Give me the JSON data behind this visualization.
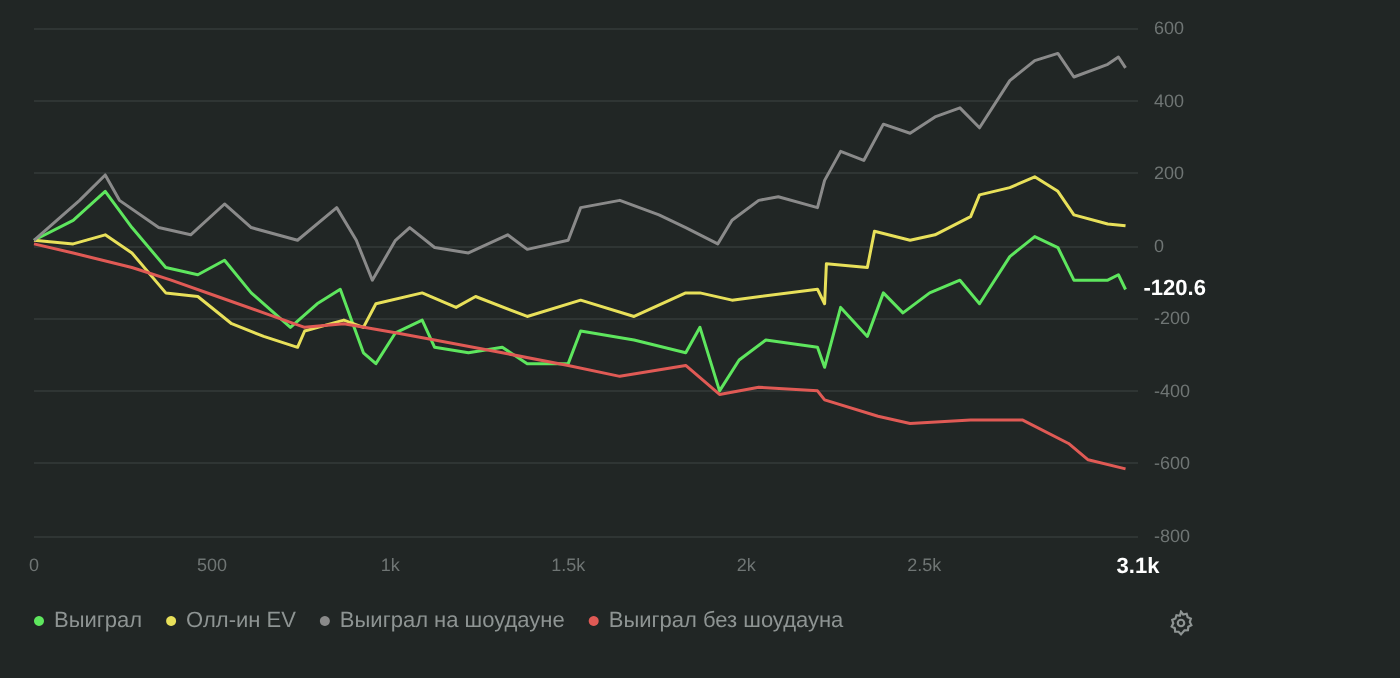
{
  "chart_data": {
    "type": "line",
    "xlim": [
      0,
      3100
    ],
    "xticks": [
      0,
      500,
      {
        "value": 1000,
        "label": "1k"
      },
      {
        "value": 1500,
        "label": "1.5k"
      },
      {
        "value": 2000,
        "label": "2k"
      },
      {
        "value": 2500,
        "label": "2.5k"
      },
      {
        "value": 3100,
        "label": "3.1k"
      }
    ],
    "ylim": [
      -800,
      600
    ],
    "yticks": [
      -800,
      -600,
      -400,
      -200,
      0,
      200,
      400,
      600
    ],
    "grid": "y",
    "legend": "bottom left",
    "marker": "none",
    "line_style": "solid",
    "annotations": [
      {
        "text": "-120.6",
        "x": 3065,
        "y": -120.6
      }
    ],
    "series": [
      {
        "name": "Выиграл",
        "color": "#5ee65e",
        "x": [
          0,
          110,
          200,
          275,
          370,
          460,
          535,
          610,
          720,
          795,
          860,
          925,
          960,
          1015,
          1090,
          1125,
          1220,
          1315,
          1385,
          1500,
          1535,
          1685,
          1830,
          1870,
          1925,
          1980,
          2055,
          2200,
          2220,
          2265,
          2340,
          2385,
          2440,
          2515,
          2600,
          2655,
          2740,
          2810,
          2875,
          2920,
          3015,
          3045,
          3065
        ],
        "values": [
          15,
          70,
          150,
          50,
          -60,
          -80,
          -40,
          -130,
          -225,
          -160,
          -120,
          -295,
          -325,
          -240,
          -205,
          -280,
          -295,
          -280,
          -325,
          -325,
          -235,
          -260,
          -295,
          -225,
          -400,
          -315,
          -260,
          -280,
          -335,
          -170,
          -250,
          -130,
          -185,
          -130,
          -95,
          -160,
          -30,
          25,
          -5,
          -95,
          -95,
          -80,
          -120.6
        ]
      },
      {
        "name": "Олл-ин EV",
        "color": "#e8e05a",
        "x": [
          0,
          110,
          200,
          275,
          370,
          460,
          555,
          645,
          740,
          760,
          870,
          925,
          960,
          1090,
          1185,
          1240,
          1385,
          1535,
          1685,
          1830,
          1870,
          1960,
          2200,
          2220,
          2225,
          2340,
          2360,
          2460,
          2530,
          2630,
          2655,
          2740,
          2810,
          2875,
          2920,
          3015,
          3065
        ],
        "values": [
          15,
          5,
          30,
          -20,
          -130,
          -140,
          -215,
          -250,
          -280,
          -235,
          -205,
          -225,
          -160,
          -130,
          -170,
          -140,
          -195,
          -150,
          -195,
          -130,
          -130,
          -150,
          -120,
          -160,
          -50,
          -60,
          40,
          15,
          30,
          80,
          140,
          160,
          190,
          150,
          85,
          60,
          55
        ]
      },
      {
        "name": "Выиграл на шоудауне",
        "color": "#8a8a8a",
        "x": [
          0,
          128,
          200,
          240,
          350,
          440,
          535,
          610,
          740,
          850,
          905,
          950,
          1015,
          1055,
          1125,
          1220,
          1330,
          1385,
          1500,
          1535,
          1645,
          1755,
          1830,
          1920,
          1960,
          2035,
          2090,
          2200,
          2220,
          2265,
          2330,
          2385,
          2460,
          2530,
          2600,
          2655,
          2740,
          2810,
          2875,
          2920,
          3015,
          3045,
          3065
        ],
        "values": [
          15,
          125,
          195,
          125,
          50,
          30,
          115,
          50,
          15,
          105,
          15,
          -95,
          15,
          50,
          -5,
          -20,
          30,
          -10,
          15,
          105,
          125,
          85,
          50,
          5,
          70,
          125,
          135,
          105,
          180,
          260,
          235,
          335,
          310,
          355,
          380,
          325,
          455,
          510,
          530,
          465,
          500,
          520,
          490
        ]
      },
      {
        "name": "Выиграл без шоудауна",
        "color": "#e05a55",
        "x": [
          0,
          110,
          275,
          385,
          515,
          645,
          760,
          870,
          1015,
          1125,
          1315,
          1500,
          1645,
          1830,
          1925,
          2035,
          2200,
          2220,
          2370,
          2460,
          2630,
          2775,
          2905,
          2960,
          3065
        ],
        "values": [
          5,
          -20,
          -60,
          -95,
          -140,
          -185,
          -225,
          -215,
          -240,
          -260,
          -295,
          -330,
          -360,
          -330,
          -410,
          -390,
          -400,
          -425,
          -470,
          -490,
          -480,
          -480,
          -545,
          -590,
          -615
        ]
      }
    ]
  }
}
